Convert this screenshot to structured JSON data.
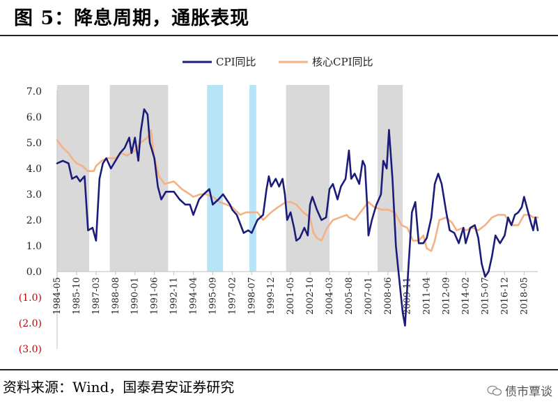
{
  "header": {
    "title": "图 5：降息周期，通胀表现"
  },
  "footer": {
    "source": "资料来源：Wind，国泰君安证券研究",
    "watermark": "债市覃谈"
  },
  "chart_data": {
    "type": "line",
    "title": "",
    "xlabel": "",
    "ylabel": "",
    "ylim": [
      -3.0,
      7.0
    ],
    "y_ticks": [
      "7.0",
      "6.0",
      "5.0",
      "4.0",
      "3.0",
      "2.0",
      "1.0",
      "0.0",
      "(1.0)",
      "(2.0)",
      "(3.0)"
    ],
    "y_tick_values": [
      7,
      6,
      5,
      4,
      3,
      2,
      1,
      0,
      -1,
      -2,
      -3
    ],
    "negative_tick_color": "#c00000",
    "x_ticks": [
      "1984-05",
      "1985-10",
      "1987-03",
      "1988-08",
      "1990-01",
      "1991-06",
      "1992-11",
      "1994-04",
      "1995-09",
      "1997-02",
      "1998-07",
      "1999-12",
      "2001-05",
      "2002-10",
      "2004-03",
      "2005-08",
      "2007-01",
      "2008-06",
      "2009-11",
      "2011-04",
      "2012-09",
      "2014-02",
      "2015-07",
      "2016-12",
      "2018-05"
    ],
    "xlim": [
      "1984-05",
      "2019-05"
    ],
    "grid": false,
    "legend_position": "top-center",
    "series": [
      {
        "name": "CPI同比",
        "color": "#1b1b7a",
        "points": [
          [
            "1984-05",
            4.2
          ],
          [
            "1984-10",
            4.3
          ],
          [
            "1985-03",
            4.2
          ],
          [
            "1985-06",
            3.6
          ],
          [
            "1985-10",
            3.7
          ],
          [
            "1986-01",
            3.5
          ],
          [
            "1986-05",
            3.7
          ],
          [
            "1986-08",
            1.6
          ],
          [
            "1986-12",
            1.7
          ],
          [
            "1987-03",
            1.2
          ],
          [
            "1987-06",
            3.6
          ],
          [
            "1987-09",
            4.2
          ],
          [
            "1987-12",
            4.4
          ],
          [
            "1988-04",
            4.0
          ],
          [
            "1988-08",
            4.3
          ],
          [
            "1988-12",
            4.6
          ],
          [
            "1989-04",
            4.8
          ],
          [
            "1989-08",
            5.2
          ],
          [
            "1989-10",
            4.6
          ],
          [
            "1990-01",
            5.2
          ],
          [
            "1990-04",
            4.3
          ],
          [
            "1990-06",
            5.4
          ],
          [
            "1990-09",
            6.3
          ],
          [
            "1990-12",
            6.1
          ],
          [
            "1991-02",
            5.0
          ],
          [
            "1991-06",
            4.4
          ],
          [
            "1991-09",
            3.3
          ],
          [
            "1991-12",
            2.8
          ],
          [
            "1992-04",
            3.1
          ],
          [
            "1992-11",
            3.1
          ],
          [
            "1993-04",
            2.8
          ],
          [
            "1993-09",
            2.6
          ],
          [
            "1994-01",
            2.6
          ],
          [
            "1994-04",
            2.2
          ],
          [
            "1994-09",
            2.8
          ],
          [
            "1995-01",
            3.0
          ],
          [
            "1995-06",
            3.2
          ],
          [
            "1995-09",
            2.6
          ],
          [
            "1996-02",
            2.8
          ],
          [
            "1996-06",
            3.0
          ],
          [
            "1996-12",
            2.6
          ],
          [
            "1997-02",
            2.4
          ],
          [
            "1997-06",
            2.2
          ],
          [
            "1997-12",
            1.5
          ],
          [
            "1998-04",
            1.6
          ],
          [
            "1998-07",
            1.5
          ],
          [
            "1998-12",
            2.0
          ],
          [
            "1999-05",
            2.2
          ],
          [
            "1999-08",
            3.2
          ],
          [
            "1999-10",
            3.7
          ],
          [
            "1999-12",
            3.3
          ],
          [
            "2000-04",
            3.6
          ],
          [
            "2000-07",
            3.3
          ],
          [
            "2000-10",
            3.6
          ],
          [
            "2000-12",
            3.0
          ],
          [
            "2001-02",
            2.0
          ],
          [
            "2001-05",
            2.3
          ],
          [
            "2001-08",
            1.7
          ],
          [
            "2001-10",
            1.2
          ],
          [
            "2002-01",
            1.3
          ],
          [
            "2002-05",
            1.7
          ],
          [
            "2002-08",
            1.4
          ],
          [
            "2002-10",
            2.6
          ],
          [
            "2002-12",
            2.9
          ],
          [
            "2003-04",
            2.4
          ],
          [
            "2003-08",
            2.0
          ],
          [
            "2003-12",
            2.1
          ],
          [
            "2004-03",
            3.2
          ],
          [
            "2004-06",
            3.4
          ],
          [
            "2004-10",
            2.8
          ],
          [
            "2005-01",
            3.3
          ],
          [
            "2005-05",
            3.6
          ],
          [
            "2005-08",
            4.7
          ],
          [
            "2005-10",
            3.6
          ],
          [
            "2006-01",
            3.8
          ],
          [
            "2006-05",
            3.4
          ],
          [
            "2006-08",
            4.3
          ],
          [
            "2006-10",
            4.1
          ],
          [
            "2006-12",
            2.5
          ],
          [
            "2007-01",
            1.4
          ],
          [
            "2007-04",
            2.0
          ],
          [
            "2007-08",
            2.6
          ],
          [
            "2007-12",
            3.0
          ],
          [
            "2008-02",
            4.3
          ],
          [
            "2008-05",
            4.0
          ],
          [
            "2008-07",
            5.5
          ],
          [
            "2008-10",
            3.6
          ],
          [
            "2009-01",
            1.0
          ],
          [
            "2009-03",
            0.1
          ],
          [
            "2009-07",
            -1.6
          ],
          [
            "2009-09",
            -2.1
          ],
          [
            "2009-12",
            0.2
          ],
          [
            "2010-03",
            2.3
          ],
          [
            "2010-06",
            2.7
          ],
          [
            "2010-09",
            1.1
          ],
          [
            "2011-01",
            1.1
          ],
          [
            "2011-04",
            1.3
          ],
          [
            "2011-08",
            2.1
          ],
          [
            "2011-11",
            3.4
          ],
          [
            "2012-02",
            3.8
          ],
          [
            "2012-05",
            3.4
          ],
          [
            "2012-09",
            2.3
          ],
          [
            "2012-12",
            1.6
          ],
          [
            "2013-04",
            1.5
          ],
          [
            "2013-08",
            1.1
          ],
          [
            "2013-12",
            1.7
          ],
          [
            "2014-02",
            1.1
          ],
          [
            "2014-06",
            1.7
          ],
          [
            "2014-10",
            1.8
          ],
          [
            "2015-01",
            1.3
          ],
          [
            "2015-04",
            0.3
          ],
          [
            "2015-07",
            -0.2
          ],
          [
            "2015-10",
            0.0
          ],
          [
            "2016-01",
            0.6
          ],
          [
            "2016-04",
            1.4
          ],
          [
            "2016-08",
            1.1
          ],
          [
            "2016-12",
            1.4
          ],
          [
            "2017-03",
            2.1
          ],
          [
            "2017-06",
            1.8
          ],
          [
            "2017-09",
            2.2
          ],
          [
            "2017-12",
            2.3
          ],
          [
            "2018-03",
            2.5
          ],
          [
            "2018-05",
            2.9
          ],
          [
            "2018-08",
            2.4
          ],
          [
            "2018-11",
            1.9
          ],
          [
            "2019-01",
            1.6
          ],
          [
            "2019-03",
            2.1
          ],
          [
            "2019-05",
            1.6
          ]
        ]
      },
      {
        "name": "核心CPI同比",
        "color": "#f4b183",
        "points": [
          [
            "1984-05",
            5.1
          ],
          [
            "1984-10",
            4.8
          ],
          [
            "1985-03",
            4.6
          ],
          [
            "1985-06",
            4.4
          ],
          [
            "1985-10",
            4.2
          ],
          [
            "1986-03",
            4.1
          ],
          [
            "1986-08",
            3.9
          ],
          [
            "1987-01",
            3.9
          ],
          [
            "1987-03",
            4.1
          ],
          [
            "1987-08",
            4.3
          ],
          [
            "1988-01",
            4.4
          ],
          [
            "1988-08",
            4.4
          ],
          [
            "1989-01",
            4.6
          ],
          [
            "1989-06",
            4.5
          ],
          [
            "1990-01",
            4.7
          ],
          [
            "1990-06",
            5.0
          ],
          [
            "1990-12",
            5.2
          ],
          [
            "1991-03",
            5.5
          ],
          [
            "1991-06",
            4.4
          ],
          [
            "1991-10",
            3.7
          ],
          [
            "1992-03",
            3.4
          ],
          [
            "1992-11",
            3.5
          ],
          [
            "1993-06",
            3.2
          ],
          [
            "1994-01",
            3.0
          ],
          [
            "1994-04",
            2.9
          ],
          [
            "1994-10",
            3.0
          ],
          [
            "1995-03",
            3.0
          ],
          [
            "1995-09",
            2.9
          ],
          [
            "1996-03",
            2.7
          ],
          [
            "1996-09",
            2.6
          ],
          [
            "1997-02",
            2.5
          ],
          [
            "1997-09",
            2.2
          ],
          [
            "1998-02",
            2.3
          ],
          [
            "1998-07",
            2.3
          ],
          [
            "1998-12",
            2.3
          ],
          [
            "1999-05",
            2.0
          ],
          [
            "1999-12",
            2.3
          ],
          [
            "2000-06",
            2.5
          ],
          [
            "2001-01",
            2.7
          ],
          [
            "2001-05",
            2.7
          ],
          [
            "2001-10",
            2.6
          ],
          [
            "2002-04",
            2.3
          ],
          [
            "2002-10",
            2.1
          ],
          [
            "2003-01",
            1.5
          ],
          [
            "2003-04",
            1.3
          ],
          [
            "2003-08",
            1.2
          ],
          [
            "2004-01",
            1.7
          ],
          [
            "2004-06",
            2.0
          ],
          [
            "2004-12",
            2.1
          ],
          [
            "2005-06",
            2.2
          ],
          [
            "2005-08",
            2.1
          ],
          [
            "2006-01",
            2.0
          ],
          [
            "2006-06",
            2.3
          ],
          [
            "2007-01",
            2.7
          ],
          [
            "2007-06",
            2.5
          ],
          [
            "2008-01",
            2.4
          ],
          [
            "2008-06",
            2.4
          ],
          [
            "2008-12",
            2.3
          ],
          [
            "2009-06",
            1.8
          ],
          [
            "2009-11",
            1.7
          ],
          [
            "2010-04",
            1.2
          ],
          [
            "2010-09",
            1.2
          ],
          [
            "2011-01",
            1.4
          ],
          [
            "2011-04",
            0.9
          ],
          [
            "2011-08",
            0.8
          ],
          [
            "2011-11",
            1.2
          ],
          [
            "2012-03",
            2.0
          ],
          [
            "2012-09",
            2.1
          ],
          [
            "2013-02",
            1.9
          ],
          [
            "2013-06",
            1.6
          ],
          [
            "2013-12",
            1.7
          ],
          [
            "2014-02",
            1.6
          ],
          [
            "2014-08",
            1.7
          ],
          [
            "2015-01",
            1.6
          ],
          [
            "2015-07",
            1.8
          ],
          [
            "2016-01",
            2.1
          ],
          [
            "2016-06",
            2.2
          ],
          [
            "2016-12",
            2.2
          ],
          [
            "2017-06",
            1.8
          ],
          [
            "2017-12",
            1.8
          ],
          [
            "2018-05",
            2.2
          ],
          [
            "2018-10",
            2.2
          ],
          [
            "2019-01",
            2.1
          ],
          [
            "2019-05",
            2.1
          ]
        ]
      }
    ],
    "shaded_regions": [
      {
        "start": "1984-05",
        "end": "1986-09",
        "color": "#d9d9d9"
      },
      {
        "start": "1988-03",
        "end": "1992-06",
        "color": "#d9d9d9"
      },
      {
        "start": "1995-04",
        "end": "1996-06",
        "color": "#b7e4f7"
      },
      {
        "start": "1998-05",
        "end": "1998-11",
        "color": "#b7e4f7"
      },
      {
        "start": "2001-01",
        "end": "2004-03",
        "color": "#d9d9d9"
      },
      {
        "start": "2007-09",
        "end": "2009-07",
        "color": "#d9d9d9"
      }
    ]
  }
}
